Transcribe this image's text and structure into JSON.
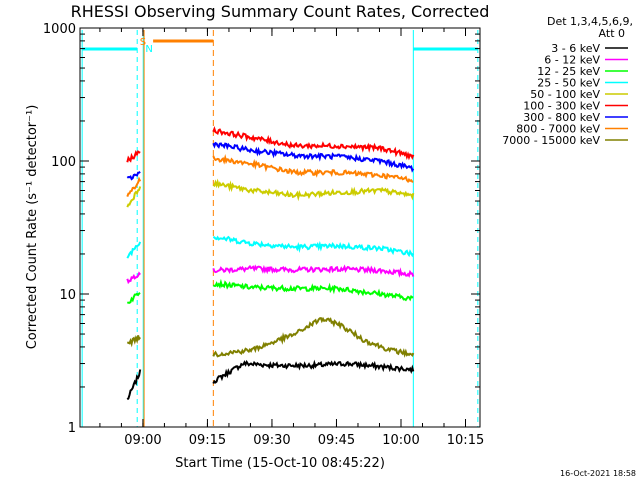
{
  "chart_data": {
    "type": "line",
    "title": "RHESSI Observing Summary Count Rates, Corrected",
    "xlabel": "Start Time (15-Oct-10 08:45:22)",
    "ylabel": "Corrected Count Rate (s⁻¹ detector⁻¹)",
    "y_scale": "log",
    "ylim": [
      1,
      1000
    ],
    "xlim": [
      0,
      93
    ],
    "x_unit": "minutes after 08:45:22",
    "x_ticks": [
      {
        "label": "09:00",
        "x": 14.63
      },
      {
        "label": "09:15",
        "x": 29.63
      },
      {
        "label": "09:30",
        "x": 44.63
      },
      {
        "label": "09:45",
        "x": 59.63
      },
      {
        "label": "10:00",
        "x": 74.63
      },
      {
        "label": "10:15",
        "x": 89.63
      }
    ],
    "y_ticks": [
      {
        "label": "1",
        "y": 1
      },
      {
        "label": "10",
        "y": 10
      },
      {
        "label": "100",
        "y": 100
      },
      {
        "label": "1000",
        "y": 1000
      }
    ],
    "legend_header": [
      "Det 1,3,4,5,6,9,",
      "Att 0"
    ],
    "legend_placement": "right",
    "colors": {
      "night_and_saa_bars": "#00ffff",
      "flare_bar": "#ff8000",
      "marker_S": "#ff8000",
      "marker_N": "#00ffff"
    },
    "series": [
      {
        "name": "3 - 6 keV",
        "color": "#000000",
        "segments": [
          [
            [
              11.0,
              1.6
            ],
            [
              14.0,
              2.6
            ]
          ],
          [
            [
              31.0,
              2.2
            ],
            [
              38.0,
              3.0
            ],
            [
              46.0,
              2.9
            ],
            [
              54.0,
              2.9
            ],
            [
              62.0,
              3.0
            ],
            [
              72.0,
              2.8
            ],
            [
              77.5,
              2.7
            ]
          ]
        ]
      },
      {
        "name": "6 - 12 keV",
        "color": "#ff00ff",
        "segments": [
          [
            [
              11.0,
              12.5
            ],
            [
              14.0,
              14.5
            ]
          ],
          [
            [
              31.0,
              15.0
            ],
            [
              40.0,
              15.5
            ],
            [
              50.0,
              15.2
            ],
            [
              60.0,
              15.4
            ],
            [
              70.0,
              15.0
            ],
            [
              77.5,
              14.0
            ]
          ]
        ]
      },
      {
        "name": "12 - 25 keV",
        "color": "#00ff00",
        "segments": [
          [
            [
              11.0,
              8.5
            ],
            [
              14.0,
              10.5
            ]
          ],
          [
            [
              31.0,
              12.0
            ],
            [
              40.0,
              11.2
            ],
            [
              50.0,
              11.0
            ],
            [
              60.0,
              11.0
            ],
            [
              70.0,
              10.0
            ],
            [
              77.5,
              9.2
            ]
          ]
        ]
      },
      {
        "name": "25 - 50 keV",
        "color": "#00ffff",
        "segments": [
          [
            [
              11.0,
              19.0
            ],
            [
              14.0,
              25.0
            ]
          ],
          [
            [
              31.0,
              27.0
            ],
            [
              40.0,
              24.0
            ],
            [
              50.0,
              22.5
            ],
            [
              60.0,
              23.0
            ],
            [
              70.0,
              22.0
            ],
            [
              77.5,
              20.0
            ]
          ]
        ]
      },
      {
        "name": "50 - 100 keV",
        "color": "#cccc00",
        "segments": [
          [
            [
              11.0,
              45.0
            ],
            [
              14.0,
              65.0
            ]
          ],
          [
            [
              31.0,
              68.0
            ],
            [
              40.0,
              60.0
            ],
            [
              50.0,
              55.0
            ],
            [
              60.0,
              58.0
            ],
            [
              70.0,
              60.0
            ],
            [
              77.5,
              55.0
            ]
          ]
        ]
      },
      {
        "name": "100 - 300 keV",
        "color": "#ff0000",
        "segments": [
          [
            [
              11.0,
              100.0
            ],
            [
              14.0,
              118.0
            ]
          ],
          [
            [
              31.0,
              170.0
            ],
            [
              40.0,
              150.0
            ],
            [
              50.0,
              130.0
            ],
            [
              60.0,
              130.0
            ],
            [
              70.0,
              125.0
            ],
            [
              77.5,
              108.0
            ]
          ]
        ]
      },
      {
        "name": "300 - 800 keV",
        "color": "#0000ff",
        "segments": [
          [
            [
              11.0,
              72.0
            ],
            [
              14.0,
              82.0
            ]
          ],
          [
            [
              31.0,
              135.0
            ],
            [
              40.0,
              120.0
            ],
            [
              50.0,
              110.0
            ],
            [
              60.0,
              108.0
            ],
            [
              70.0,
              100.0
            ],
            [
              77.5,
              88.0
            ]
          ]
        ]
      },
      {
        "name": "800 - 7000 keV",
        "color": "#ff8000",
        "segments": [
          [
            [
              11.0,
              55.0
            ],
            [
              14.0,
              72.0
            ]
          ],
          [
            [
              31.0,
              105.0
            ],
            [
              40.0,
              95.0
            ],
            [
              50.0,
              82.0
            ],
            [
              60.0,
              82.0
            ],
            [
              70.0,
              78.0
            ],
            [
              77.5,
              72.0
            ]
          ]
        ]
      },
      {
        "name": "7000 - 15000 keV",
        "color": "#808000",
        "segments": [
          [
            [
              11.0,
              4.2
            ],
            [
              14.0,
              4.8
            ]
          ],
          [
            [
              31.0,
              3.5
            ],
            [
              40.0,
              3.8
            ],
            [
              50.0,
              5.0
            ],
            [
              56.0,
              6.5
            ],
            [
              60.0,
              6.0
            ],
            [
              66.0,
              4.5
            ],
            [
              72.0,
              3.8
            ],
            [
              77.5,
              3.5
            ]
          ]
        ]
      }
    ]
  },
  "footer": {
    "date": "16-Oct-2021 18:58"
  },
  "markers": {
    "S": "S",
    "N": "N"
  }
}
